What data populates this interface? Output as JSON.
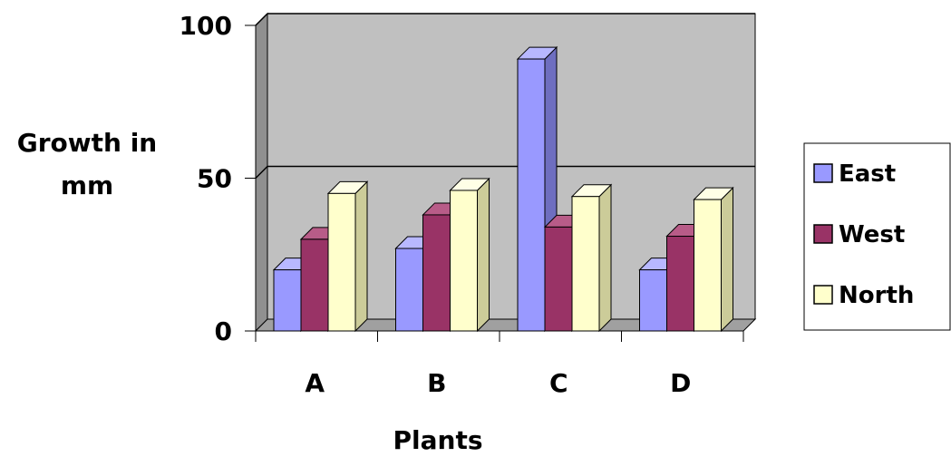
{
  "chart_data": {
    "type": "bar",
    "title": "",
    "xlabel": "Plants",
    "ylabel_lines": [
      "Growth in",
      "mm"
    ],
    "categories": [
      "A",
      "B",
      "C",
      "D"
    ],
    "series": [
      {
        "name": "East",
        "values": [
          20,
          27,
          89,
          20
        ]
      },
      {
        "name": "West",
        "values": [
          30,
          38,
          34,
          31
        ]
      },
      {
        "name": "North",
        "values": [
          45,
          46,
          44,
          43
        ]
      }
    ],
    "ylim": [
      0,
      100
    ],
    "yticks": [
      0,
      50,
      100
    ],
    "gridlines": [
      50,
      100
    ],
    "legend_position": "right",
    "style": "3d-clustered-column",
    "colors": {
      "East": {
        "front": "#9999FF",
        "side": "#6E6EC0",
        "top": "#B8B8FF"
      },
      "West": {
        "front": "#993366",
        "side": "#6B2347",
        "top": "#B85C88"
      },
      "North": {
        "front": "#FFFFCC",
        "side": "#CCCC99",
        "top": "#FFFFE6"
      },
      "wall": "#C0C0C0",
      "side_wall": "#909090",
      "floor": "#A0A0A0",
      "outline": "#000000"
    }
  }
}
